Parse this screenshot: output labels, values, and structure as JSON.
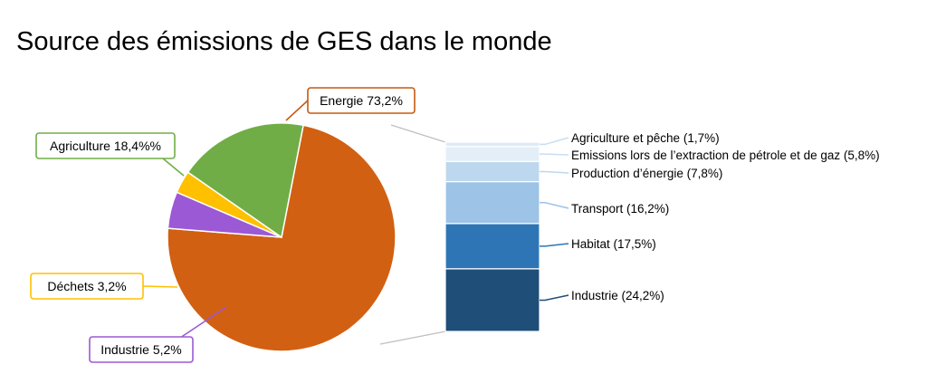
{
  "chart_data": {
    "type": "pie",
    "title": "Source des émissions de GES dans le monde",
    "slices": [
      {
        "name": "Energie",
        "label": "Energie 73,2%",
        "value": 73.2,
        "color": "#D26012",
        "border": "#C55A11"
      },
      {
        "name": "Industrie",
        "label": "Industrie 5,2%",
        "value": 5.2,
        "color": "#9B59D5",
        "border": "#9B59D5"
      },
      {
        "name": "Déchets",
        "label": "Déchets 3,2%",
        "value": 3.2,
        "color": "#FFC000",
        "border": "#FFC000"
      },
      {
        "name": "Agriculture",
        "label": "Agriculture 18,4%%",
        "value": 18.4,
        "color": "#70AD47",
        "border": "#70AD47"
      }
    ],
    "breakdown": {
      "of": "Energie",
      "segments": [
        {
          "label": "Agriculture et pêche (1,7%)",
          "value": 1.7,
          "color": "#DEEBF7"
        },
        {
          "label": "Emissions lors de l’extraction de pétrole et de gaz (5,8%)",
          "value": 5.8,
          "color": "#E4EEF8"
        },
        {
          "label": "Production d’énergie (7,8%)",
          "value": 7.8,
          "color": "#BDD7EE"
        },
        {
          "label": "Transport (16,2%)",
          "value": 16.2,
          "color": "#9DC3E6"
        },
        {
          "label": "Habitat (17,5%)",
          "value": 17.5,
          "color": "#2E75B6"
        },
        {
          "label": "Industrie (24,2%)",
          "value": 24.2,
          "color": "#1F4E79"
        }
      ]
    }
  }
}
